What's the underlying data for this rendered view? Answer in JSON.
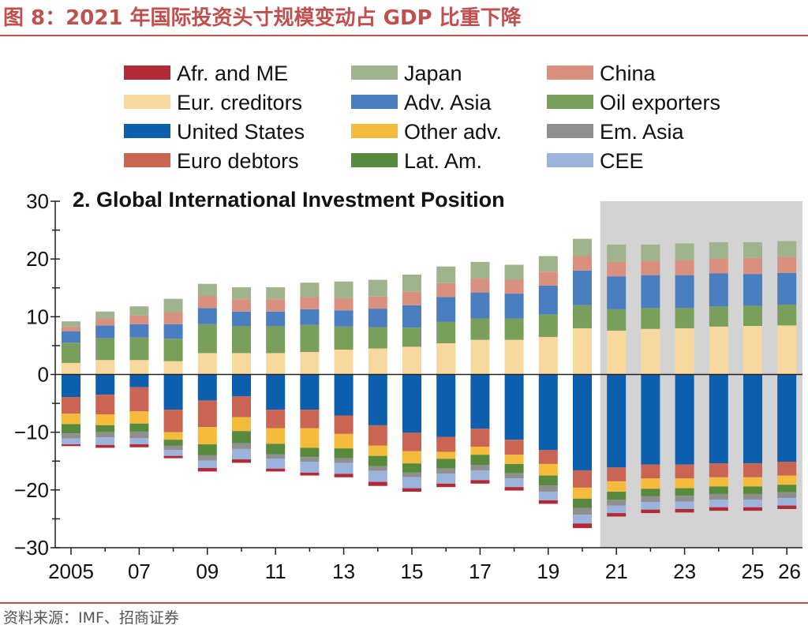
{
  "header": {
    "title": "图 8：2021 年国际投资头寸规模变动占 GDP 比重下降"
  },
  "footer": {
    "source": "资料来源：IMF、招商证券"
  },
  "chart_data": {
    "type": "bar",
    "stacked": true,
    "title": "2. Global International Investment Position",
    "xlabel": "",
    "ylabel": "",
    "ylim": [
      -30,
      30
    ],
    "yticks": [
      -30,
      -20,
      -10,
      0,
      10,
      20,
      30
    ],
    "grid": false,
    "legend_position": "top",
    "projection_shaded_from": "21",
    "categories": [
      "2005",
      "06",
      "07",
      "08",
      "09",
      "10",
      "11",
      "12",
      "13",
      "14",
      "15",
      "16",
      "17",
      "18",
      "19",
      "20",
      "21",
      "22",
      "23",
      "24",
      "25",
      "26"
    ],
    "x_tick_labels": {
      "2005": "2005",
      "07": "07",
      "09": "09",
      "11": "11",
      "13": "13",
      "15": "15",
      "17": "17",
      "19": "19",
      "21": "21",
      "23": "23",
      "25": "25",
      "26": "26"
    },
    "legend_order": [
      "Afr. and ME",
      "Japan",
      "China",
      "Eur. creditors",
      "Adv. Asia",
      "Oil exporters",
      "United States",
      "Other adv.",
      "Em. Asia",
      "Euro debtors",
      "Lat. Am.",
      "CEE"
    ],
    "series": [
      {
        "name": "Eur. creditors",
        "color": "#f7d9a0",
        "sign": "positive",
        "values": [
          2.0,
          2.5,
          2.5,
          2.3,
          3.7,
          3.7,
          3.7,
          3.9,
          4.3,
          4.5,
          4.8,
          5.4,
          6.0,
          6.0,
          6.5,
          8.0,
          7.6,
          7.9,
          8.0,
          8.3,
          8.4,
          8.5
        ]
      },
      {
        "name": "Oil exporters",
        "color": "#7a9e5c",
        "sign": "positive",
        "values": [
          3.5,
          3.8,
          3.9,
          3.9,
          5.0,
          4.7,
          4.7,
          4.7,
          4.0,
          3.7,
          3.3,
          3.7,
          3.7,
          3.7,
          3.9,
          4.0,
          3.7,
          3.6,
          3.5,
          3.5,
          3.5,
          3.6
        ]
      },
      {
        "name": "Adv. Asia",
        "color": "#4a7ec0",
        "sign": "positive",
        "values": [
          2.0,
          2.2,
          2.3,
          2.5,
          2.8,
          2.5,
          2.5,
          2.7,
          2.8,
          3.2,
          3.9,
          4.3,
          4.5,
          4.3,
          5.0,
          6.0,
          5.7,
          5.7,
          5.7,
          5.7,
          5.5,
          5.5
        ]
      },
      {
        "name": "China",
        "color": "#d9907f",
        "sign": "positive",
        "values": [
          0.8,
          1.2,
          1.5,
          2.1,
          2.1,
          2.1,
          2.1,
          2.1,
          2.1,
          2.1,
          2.3,
          2.4,
          2.4,
          2.4,
          2.4,
          2.5,
          2.5,
          2.5,
          2.6,
          2.6,
          2.8,
          2.8
        ]
      },
      {
        "name": "Japan",
        "color": "#9fb48d",
        "sign": "positive",
        "values": [
          0.9,
          1.2,
          1.6,
          2.3,
          2.1,
          2.1,
          2.1,
          2.5,
          2.9,
          2.9,
          3.0,
          2.9,
          2.9,
          2.6,
          2.7,
          3.0,
          3.0,
          2.8,
          2.9,
          2.8,
          2.7,
          2.7
        ]
      },
      {
        "name": "United States",
        "color": "#0d5fae",
        "sign": "negative",
        "values": [
          -3.9,
          -3.5,
          -2.2,
          -6.1,
          -4.5,
          -3.8,
          -6.1,
          -6.1,
          -7.1,
          -8.8,
          -10.1,
          -10.8,
          -9.4,
          -11.3,
          -13.1,
          -16.6,
          -16.1,
          -15.6,
          -15.6,
          -15.4,
          -15.4,
          -15.1
        ]
      },
      {
        "name": "Euro debtors",
        "color": "#c96552",
        "sign": "negative",
        "values": [
          -2.9,
          -3.4,
          -4.2,
          -3.9,
          -4.6,
          -3.6,
          -3.2,
          -3.2,
          -3.2,
          -3.5,
          -3.2,
          -2.6,
          -3.1,
          -2.6,
          -2.4,
          -3.0,
          -2.4,
          -2.4,
          -2.4,
          -2.4,
          -2.4,
          -2.4
        ]
      },
      {
        "name": "Other adv.",
        "color": "#f4bb3c",
        "sign": "negative",
        "values": [
          -1.8,
          -1.9,
          -2.1,
          -1.3,
          -3.0,
          -2.4,
          -2.7,
          -3.4,
          -2.5,
          -1.8,
          -2.1,
          -1.2,
          -1.4,
          -1.6,
          -2.0,
          -1.9,
          -1.8,
          -1.8,
          -1.7,
          -1.6,
          -1.6,
          -1.6
        ]
      },
      {
        "name": "Lat. Am.",
        "color": "#578a3c",
        "sign": "negative",
        "values": [
          -1.6,
          -1.2,
          -1.4,
          -1.0,
          -1.9,
          -2.1,
          -1.8,
          -1.6,
          -1.7,
          -1.8,
          -1.6,
          -1.7,
          -1.8,
          -1.6,
          -1.7,
          -1.6,
          -1.4,
          -1.3,
          -1.3,
          -1.3,
          -1.3,
          -1.3
        ]
      },
      {
        "name": "Em. Asia",
        "color": "#8f8f8f",
        "sign": "negative",
        "values": [
          -0.9,
          -0.9,
          -1.1,
          -0.8,
          -0.9,
          -1.0,
          -0.8,
          -0.8,
          -0.8,
          -0.8,
          -0.8,
          -0.9,
          -0.9,
          -0.9,
          -1.1,
          -1.2,
          -1.0,
          -1.0,
          -1.0,
          -1.0,
          -1.0,
          -1.0
        ]
      },
      {
        "name": "CEE",
        "color": "#9cb3dc",
        "sign": "negative",
        "values": [
          -1.0,
          -1.3,
          -1.1,
          -1.0,
          -1.3,
          -1.8,
          -1.7,
          -1.9,
          -1.9,
          -1.9,
          -1.9,
          -1.7,
          -1.7,
          -1.5,
          -1.5,
          -1.5,
          -1.3,
          -1.3,
          -1.3,
          -1.3,
          -1.3,
          -1.3
        ]
      },
      {
        "name": "Afr. and ME",
        "color": "#b22a36",
        "sign": "negative",
        "values": [
          -0.3,
          -0.5,
          -0.5,
          -0.4,
          -0.6,
          -0.6,
          -0.5,
          -0.5,
          -0.6,
          -0.7,
          -0.6,
          -0.6,
          -0.6,
          -0.6,
          -0.6,
          -0.8,
          -0.6,
          -0.6,
          -0.6,
          -0.6,
          -0.6,
          -0.6
        ]
      }
    ]
  }
}
